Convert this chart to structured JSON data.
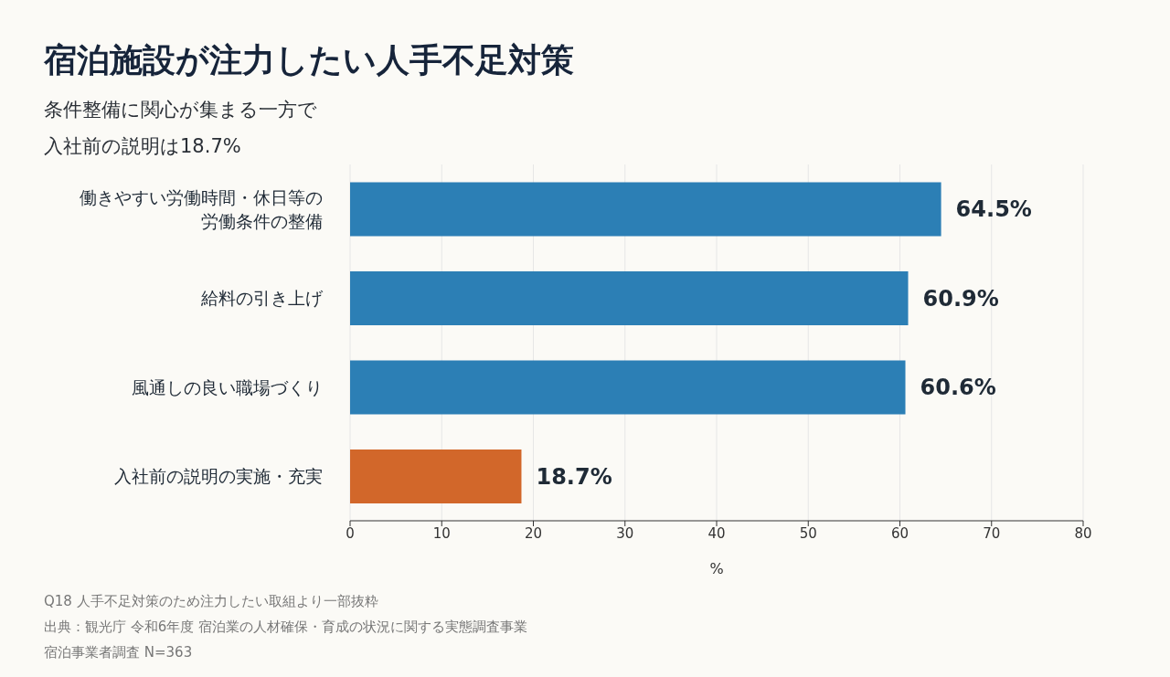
{
  "chart_data": {
    "type": "bar",
    "orientation": "horizontal",
    "title": "宿泊施設が注力したい人手不足対策",
    "subtitle": "条件整備に関心が集まる一方で入社前の説明は18.7%",
    "categories": [
      "働きやすい労働時間・休日等の労働条件の整備",
      "給料の引き上げ",
      "風通しの良い職場づくり",
      "入社前の説明の実施・充実"
    ],
    "values": [
      64.5,
      60.9,
      60.6,
      18.7
    ],
    "colors": [
      "#2c7fb5",
      "#2c7fb5",
      "#2c7fb5",
      "#d2672a"
    ],
    "value_labels": [
      "64.5%",
      "60.9%",
      "60.6%",
      "18.7%"
    ],
    "xlabel": "%",
    "xlim": [
      0,
      80
    ],
    "xticks": [
      0,
      10,
      20,
      30,
      40,
      50,
      60,
      70,
      80
    ],
    "grid": "x",
    "legend": false,
    "annotations": [
      "Q18 人手不足対策のため注力したい取組より一部抜粋",
      "出典：観光庁 令和6年度 宿泊業の人材確保・育成の状況に関する実態調査事業",
      "宿泊事業者調査 N=363"
    ]
  }
}
